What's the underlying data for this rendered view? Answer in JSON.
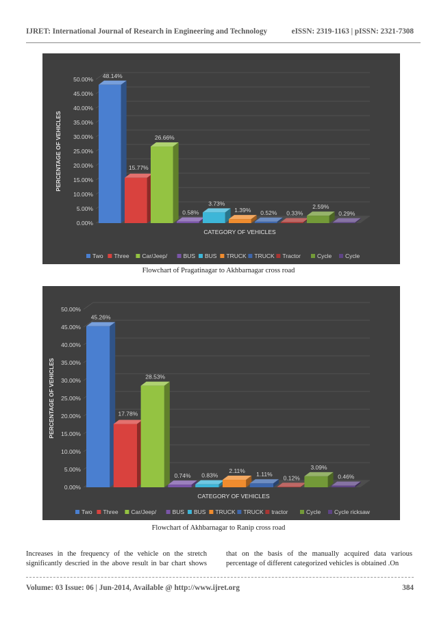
{
  "header": {
    "journal": "IJRET: International Journal of Research in Engineering and Technology",
    "issn": "eISSN: 2319-1163 | pISSN: 2321-7308"
  },
  "chart_data": [
    {
      "type": "bar",
      "title": "",
      "xlabel": "CATEGORY OF VEHICLES",
      "ylabel": "PERCENTAGE OF VEHICLES",
      "ylim": [
        0,
        50
      ],
      "yticks": [
        "0.00%",
        "5.00%",
        "10.00%",
        "15.00%",
        "20.00%",
        "25.00%",
        "30.00%",
        "35.00%",
        "40.00%",
        "45.00%",
        "50.00%"
      ],
      "grid": true,
      "legend_position": "bottom",
      "categories": [
        "Two",
        "Three",
        "Car/Jeep/",
        "BUS",
        "BUS",
        "TRUCK",
        "TRUCK",
        "Tractor",
        "Cycle",
        "Cycle"
      ],
      "values": [
        48.14,
        15.77,
        26.66,
        0.58,
        3.73,
        1.39,
        0.52,
        0.33,
        2.59,
        0.29
      ],
      "labels": [
        "48.14%",
        "15.77%",
        "26.66%",
        "0.58%",
        "3.73%",
        "1.39%",
        "0.52%",
        "0.33%",
        "2.59%",
        "0.29%"
      ],
      "colors": [
        "#4a7fd0",
        "#d9423e",
        "#94c342",
        "#7a55a8",
        "#3db6d8",
        "#f08c2e",
        "#3e67ac",
        "#a83532",
        "#739a38",
        "#5e4485"
      ]
    },
    {
      "type": "bar",
      "title": "",
      "xlabel": "CATEGORY OF VEHICLES",
      "ylabel": "PERCENTAGE OF VEHICLES",
      "ylim": [
        0,
        50
      ],
      "yticks": [
        "0.00%",
        "5.00%",
        "10.00%",
        "15.00%",
        "20.00%",
        "25.00%",
        "30.00%",
        "35.00%",
        "40.00%",
        "45.00%",
        "50.00%"
      ],
      "grid": true,
      "legend_position": "bottom",
      "categories": [
        "Two",
        "Three",
        "Car/Jeep/",
        "BUS",
        "BUS",
        "TRUCK",
        "TRUCK",
        "tractor",
        "Cycle",
        "Cycle ricksaw"
      ],
      "values": [
        45.26,
        17.78,
        28.53,
        0.74,
        0.83,
        2.11,
        1.11,
        0.12,
        3.09,
        0.46
      ],
      "labels": [
        "45.26%",
        "17.78%",
        "28.53%",
        "0.74%",
        "0.83%",
        "2.11%",
        "1.11%",
        "0.12%",
        "3.09%",
        "0.46%"
      ],
      "colors": [
        "#4a7fd0",
        "#d9423e",
        "#94c342",
        "#7a55a8",
        "#3db6d8",
        "#f08c2e",
        "#3e67ac",
        "#a83532",
        "#739a38",
        "#5e4485"
      ]
    }
  ],
  "captions": {
    "chart1": "Flowchart of Pragatinagar to Akhbarnagar cross road",
    "chart2": "Flowchart of Akhbarnagar to Ranip cross road"
  },
  "body": {
    "left": "Increases in the frequency of the vehicle on the stretch significantly descried in the above result in bar chart shows",
    "right": "that on the basis of the manually acquired data various percentage of different categorized vehicles is obtained .On"
  },
  "footer": {
    "volume": "Volume: 03 Issue: 06 | Jun-2014, Available @ http://www.ijret.org",
    "page": "384"
  }
}
